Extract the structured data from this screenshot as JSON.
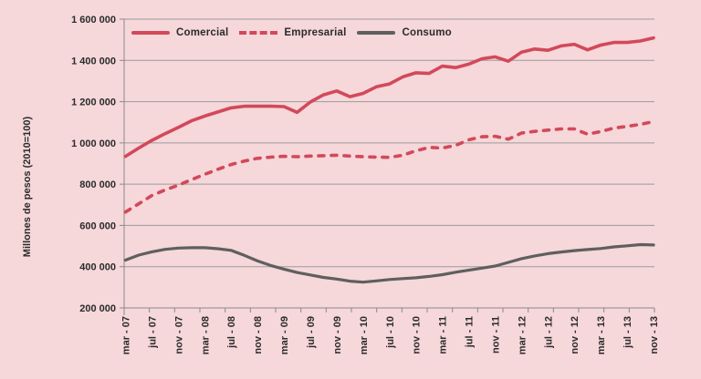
{
  "colors": {
    "background": "#f6d7da",
    "line_red": "#d2495a",
    "line_gray": "#5f5f5f",
    "grid": "#9b9b9b",
    "axis": "#8a8a8a",
    "text": "#2b2b2b"
  },
  "chart_data": {
    "type": "line",
    "title": "",
    "xlabel": "",
    "ylabel": "Millones de pesos (2010=100)",
    "ylim": [
      200000,
      1600000
    ],
    "ytick_step": 200000,
    "grid": "horizontal",
    "legend_position": "top-left-inside",
    "x_tick_labels": [
      "mar - 07",
      "jul - 07",
      "nov - 07",
      "mar - 08",
      "jul - 08",
      "nov - 08",
      "mar - 09",
      "jul - 09",
      "nov - 09",
      "mar - 10",
      "jul - 10",
      "nov - 10",
      "mar - 11",
      "jul - 11",
      "nov - 11",
      "mar - 12",
      "jul - 12",
      "nov - 12",
      "mar - 13",
      "jul - 13",
      "nov - 13"
    ],
    "x": [
      "mar-07",
      "may-07",
      "jul-07",
      "sep-07",
      "nov-07",
      "ene-08",
      "mar-08",
      "may-08",
      "jul-08",
      "sep-08",
      "nov-08",
      "ene-09",
      "mar-09",
      "may-09",
      "jul-09",
      "sep-09",
      "nov-09",
      "ene-10",
      "mar-10",
      "may-10",
      "jul-10",
      "sep-10",
      "nov-10",
      "ene-11",
      "mar-11",
      "may-11",
      "jul-11",
      "sep-11",
      "nov-11",
      "ene-12",
      "mar-12",
      "may-12",
      "jul-12",
      "sep-12",
      "nov-12",
      "ene-13",
      "mar-13",
      "may-13",
      "jul-13",
      "sep-13",
      "nov-13"
    ],
    "series": [
      {
        "name": "Comercial",
        "style": "solid",
        "color_key": "line_red",
        "values": [
          935000,
          975000,
          1012000,
          1045000,
          1075000,
          1107000,
          1130000,
          1150000,
          1170000,
          1178000,
          1178000,
          1178000,
          1176000,
          1148000,
          1198000,
          1233000,
          1252000,
          1224000,
          1240000,
          1272000,
          1286000,
          1320000,
          1340000,
          1337000,
          1372000,
          1365000,
          1382000,
          1408000,
          1417000,
          1396000,
          1440000,
          1455000,
          1449000,
          1470000,
          1478000,
          1451000,
          1474000,
          1487000,
          1487000,
          1494000,
          1509000
        ]
      },
      {
        "name": "Empresarial",
        "style": "dashed",
        "color_key": "line_red",
        "values": [
          665000,
          705000,
          745000,
          772000,
          795000,
          822000,
          848000,
          872000,
          895000,
          912000,
          925000,
          931000,
          935000,
          933000,
          936000,
          938000,
          940000,
          936000,
          933000,
          931000,
          930000,
          940000,
          962000,
          978000,
          975000,
          988000,
          1015000,
          1030000,
          1032000,
          1018000,
          1048000,
          1056000,
          1062000,
          1068000,
          1068000,
          1042000,
          1055000,
          1072000,
          1080000,
          1090000,
          1103000
        ]
      },
      {
        "name": "Consumo",
        "style": "solid",
        "color_key": "line_gray",
        "values": [
          432000,
          456000,
          472000,
          484000,
          490000,
          492000,
          492000,
          487000,
          479000,
          455000,
          428000,
          406000,
          388000,
          372000,
          360000,
          348000,
          340000,
          330000,
          325000,
          331000,
          338000,
          342000,
          346000,
          353000,
          361000,
          373000,
          383000,
          393000,
          403000,
          421000,
          439000,
          452000,
          463000,
          471000,
          478000,
          483000,
          488000,
          496000,
          501000,
          507000,
          505000
        ]
      }
    ]
  }
}
